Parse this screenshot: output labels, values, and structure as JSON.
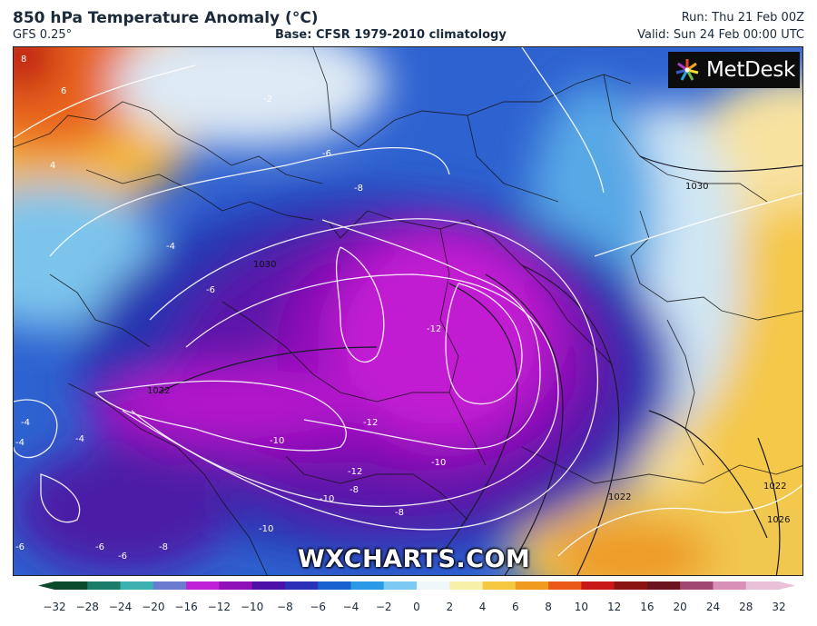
{
  "header": {
    "title": "850 hPa Temperature Anomaly (°C)",
    "model": "GFS 0.25°",
    "base": "Base: CFSR 1979-2010 climatology",
    "run": "Run: Thu 21 Feb 00Z",
    "valid": "Valid: Sun 24 Feb 00:00 UTC"
  },
  "brand": {
    "logo_text": "MetDesk",
    "logo_icon": "metdesk-star-icon",
    "watermark": "WXCHARTS.COM"
  },
  "contour_labels": {
    "anomaly": [
      "8",
      "6",
      "4",
      "-2",
      "-6",
      "-8",
      "-4",
      "-6",
      "-4",
      "-4",
      "-4",
      "-6",
      "-12",
      "-12",
      "-10",
      "-10",
      "-12",
      "-10",
      "-8",
      "-8",
      "-10",
      "-6",
      "-8",
      "-6"
    ],
    "pressure": [
      "1030",
      "1030",
      "1032",
      "1022",
      "1022",
      "1026"
    ]
  },
  "legend": {
    "ticks": [
      "−32",
      "−28",
      "−24",
      "−20",
      "−16",
      "−12",
      "−10",
      "−8",
      "−6",
      "−4",
      "−2",
      "0",
      "2",
      "4",
      "6",
      "8",
      "10",
      "12",
      "16",
      "20",
      "24",
      "28",
      "32"
    ],
    "colors": [
      "#0b4b2c",
      "#1b7c69",
      "#3ab0b0",
      "#6a7bd0",
      "#c020d8",
      "#9010b8",
      "#4c10a8",
      "#2a30b8",
      "#1860d0",
      "#2a9ae6",
      "#7ccaf2",
      "#f0f7fb",
      "#f7f0a8",
      "#f4c840",
      "#f09a20",
      "#ea5a14",
      "#c81818",
      "#8a1412",
      "#6a1420",
      "#a04872",
      "#d890b8",
      "#e8c0d8"
    ]
  }
}
